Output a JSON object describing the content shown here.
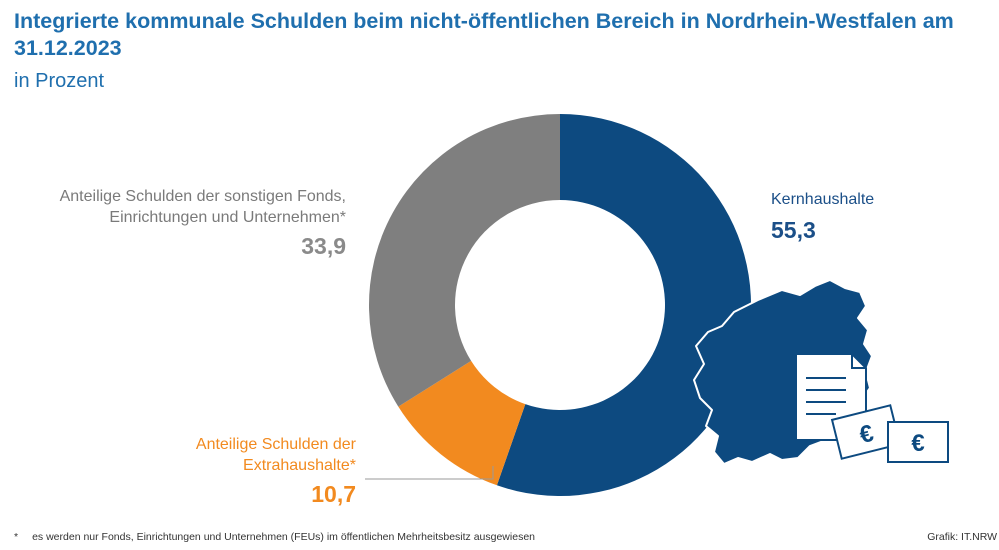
{
  "chart_data": {
    "type": "pie",
    "title": "Integrierte kommunale Schulden beim nicht-öffentlichen Bereich in Nordrhein-Westfalen am 31.12.2023",
    "subtitle": "in Prozent",
    "slices": [
      {
        "label": "Kernhaushalte",
        "value": 55.3,
        "value_text": "55,3",
        "color": "#0d4a80"
      },
      {
        "label": "Anteilige Schulden der Extrahaushalte*",
        "value": 10.7,
        "value_text": "10,7",
        "color": "#f28a1f"
      },
      {
        "label": "Anteilige Schulden der sonstigen Fonds, Einrichtungen und Unternehmen*",
        "value": 33.9,
        "value_text": "33,9",
        "color": "#7f7f7f"
      }
    ],
    "labels_display": {
      "gray_line1": "Anteilige Schulden der sonstigen Fonds,",
      "gray_line2": "Einrichtungen und Unternehmen*",
      "orange_line1": "Anteilige Schulden der",
      "orange_line2": "Extrahaushalte*"
    },
    "footnote_marker": "*",
    "footnote": "es werden nur Fonds, Einrichtungen und Unternehmen (FEUs) im öffentlichen Mehrheitsbesitz ausgewiesen",
    "credit": "Grafik: IT.NRW"
  },
  "icons": [
    "nrw-map-icon",
    "document-icon",
    "euro-banknote-icon"
  ],
  "currency_symbol": "€"
}
